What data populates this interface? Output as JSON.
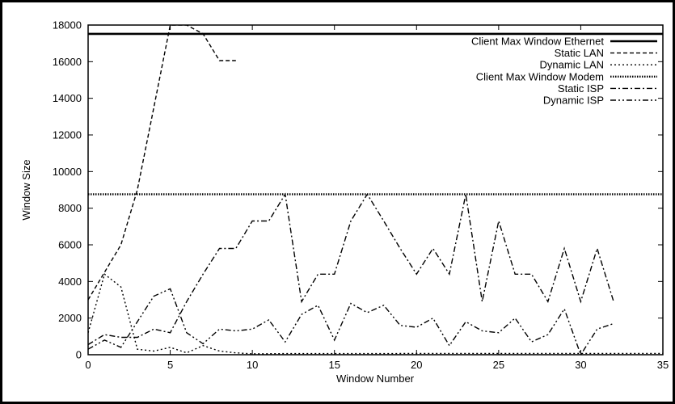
{
  "chart_data": {
    "type": "line",
    "title": "",
    "xlabel": "Window Number",
    "ylabel": "Window Size",
    "xlim": [
      0,
      35
    ],
    "ylim": [
      0,
      18000
    ],
    "x_ticks": [
      0,
      5,
      10,
      15,
      20,
      25,
      30,
      35
    ],
    "y_ticks": [
      0,
      2000,
      4000,
      6000,
      8000,
      10000,
      12000,
      14000,
      16000,
      18000
    ],
    "legend_position": "top-right",
    "grid": false,
    "series": [
      {
        "name": "Client Max Window Ethernet",
        "style": "solid",
        "x": [
          0,
          35
        ],
        "y": [
          17520,
          17520
        ]
      },
      {
        "name": "Static LAN",
        "style": "dashed",
        "x": [
          0,
          1,
          2,
          3,
          4,
          5,
          6,
          7,
          8,
          9
        ],
        "y": [
          3000,
          4500,
          6000,
          9000,
          13500,
          18000,
          18000,
          17520,
          16060,
          16060
        ]
      },
      {
        "name": "Dynamic LAN",
        "style": "dotted",
        "x": [
          0,
          1,
          2,
          3,
          4,
          5,
          6,
          7,
          8,
          9,
          10,
          12,
          14,
          16,
          18,
          20,
          22,
          24,
          26,
          28,
          30,
          32,
          35
        ],
        "y": [
          1200,
          4400,
          3700,
          300,
          200,
          400,
          100,
          500,
          200,
          100,
          50,
          60,
          60,
          60,
          60,
          70,
          70,
          70,
          70,
          70,
          70,
          70,
          70
        ]
      },
      {
        "name": "Client Max Window Modem",
        "style": "densedot",
        "x": [
          0,
          35
        ],
        "y": [
          8760,
          8760
        ]
      },
      {
        "name": "Static ISP",
        "style": "dashdot",
        "x": [
          0,
          1,
          2,
          3,
          4,
          5,
          6,
          7,
          8,
          9,
          10,
          11,
          12,
          13,
          14,
          15,
          16,
          17,
          18,
          19,
          20,
          21,
          22,
          23,
          24,
          25,
          26,
          27,
          28,
          29,
          30,
          31,
          32
        ],
        "y": [
          550,
          1100,
          950,
          950,
          1400,
          1200,
          2900,
          4400,
          5800,
          5800,
          7300,
          7300,
          8760,
          2900,
          4400,
          4400,
          7300,
          8760,
          7300,
          5800,
          4400,
          5800,
          4400,
          8760,
          2900,
          7300,
          4400,
          4400,
          2900,
          5800,
          2900,
          5800,
          2900
        ]
      },
      {
        "name": "Dynamic ISP",
        "style": "dashdotdot",
        "x": [
          0,
          1,
          2,
          3,
          4,
          5,
          6,
          7,
          8,
          9,
          10,
          11,
          12,
          13,
          14,
          15,
          16,
          17,
          18,
          19,
          20,
          21,
          22,
          23,
          24,
          25,
          26,
          27,
          28,
          29,
          30,
          31,
          32
        ],
        "y": [
          300,
          800,
          400,
          1800,
          3200,
          3600,
          1200,
          600,
          1400,
          1300,
          1400,
          1900,
          700,
          2200,
          2700,
          800,
          2800,
          2300,
          2700,
          1600,
          1500,
          2000,
          500,
          1800,
          1300,
          1200,
          2000,
          700,
          1100,
          2500,
          0,
          1400,
          1700
        ]
      }
    ]
  }
}
